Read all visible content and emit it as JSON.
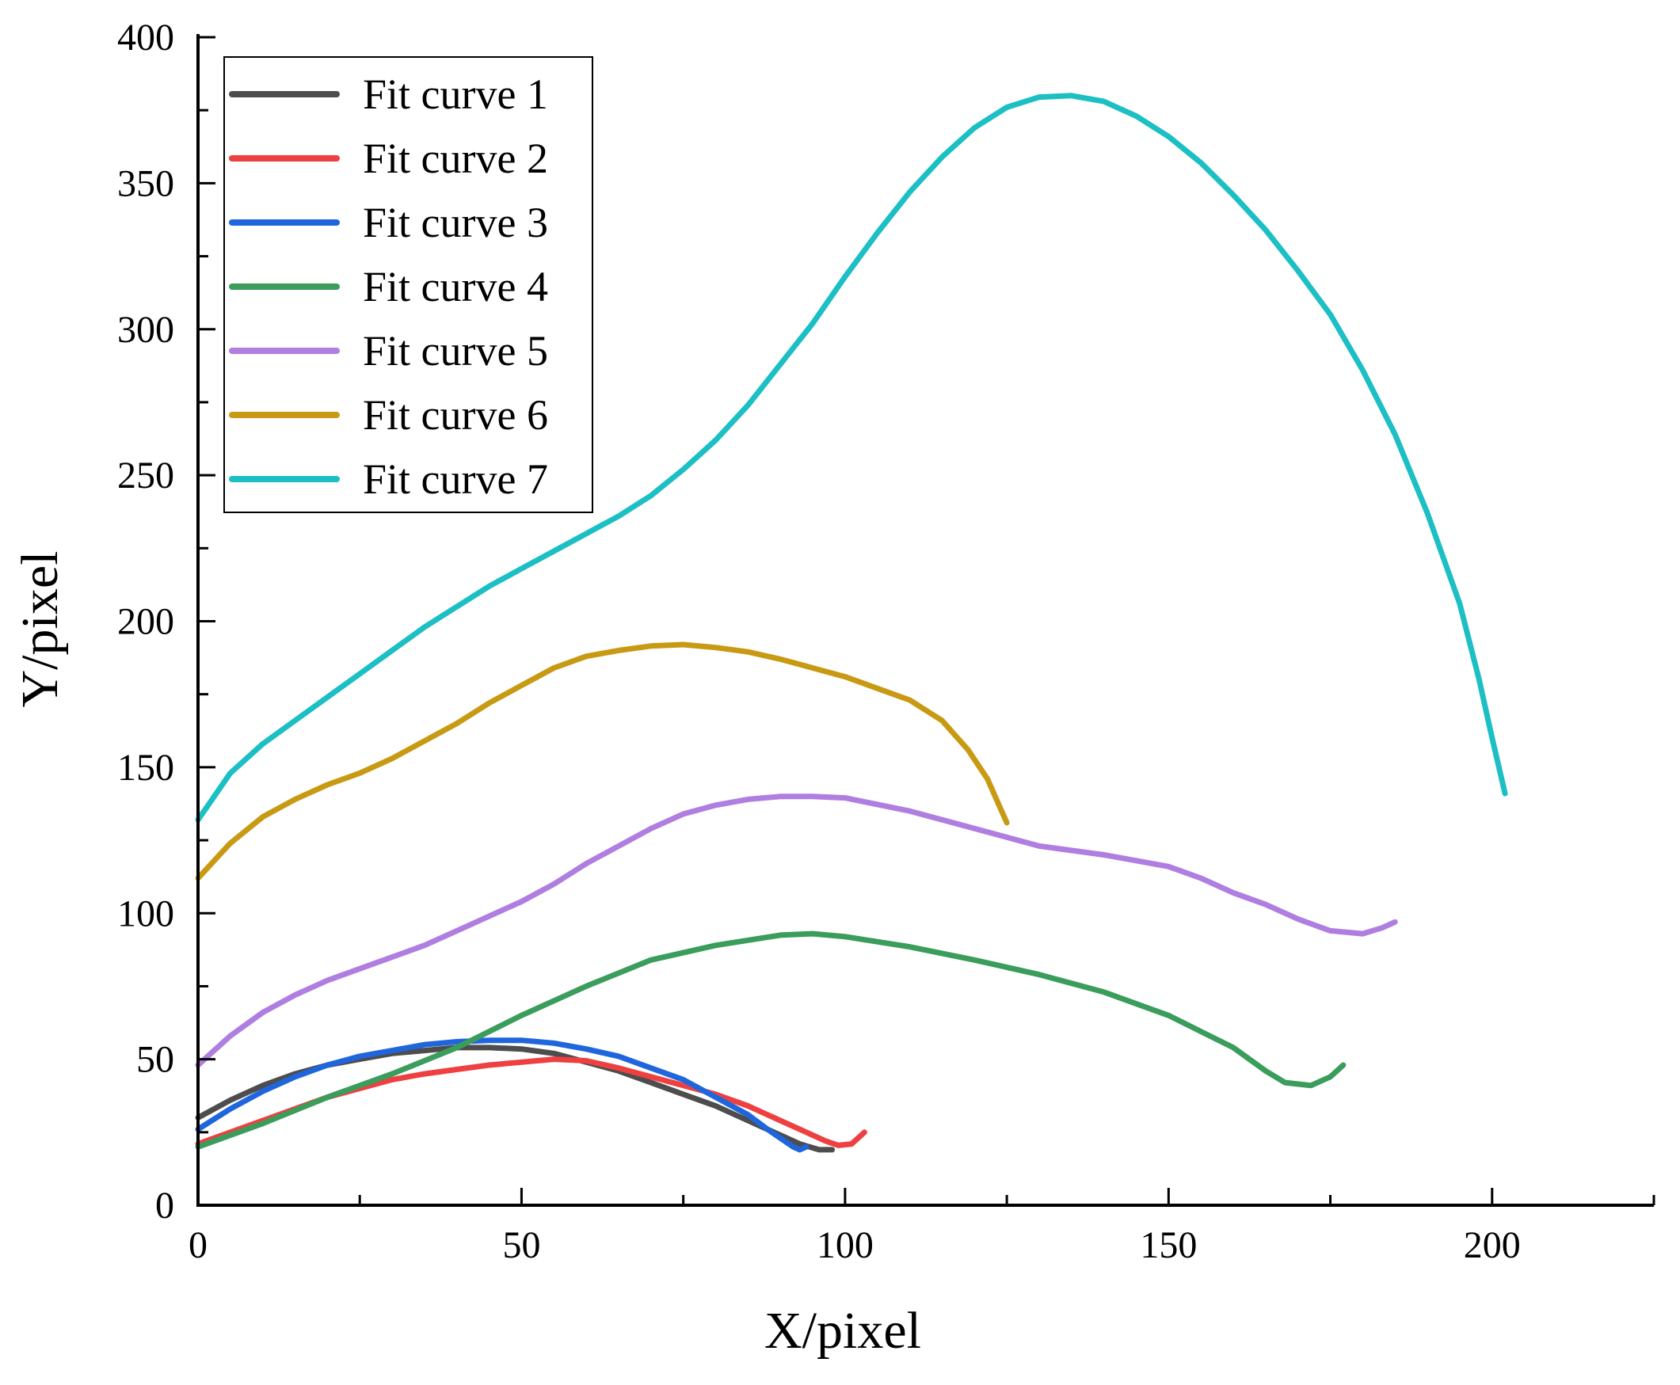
{
  "chart_data": {
    "type": "line",
    "title": "",
    "xlabel": "X/pixel",
    "ylabel": "Y/pixel",
    "xlim": [
      0,
      225
    ],
    "ylim": [
      0,
      400
    ],
    "x_ticks": [
      "0",
      "50",
      "100",
      "150",
      "200"
    ],
    "y_ticks": [
      "0",
      "50",
      "100",
      "150",
      "200",
      "250",
      "300",
      "350",
      "400"
    ],
    "grid": false,
    "legend_position": "top-left",
    "series": [
      {
        "name": "Fit curve 1",
        "color": "#4d4d4d",
        "points": [
          [
            0,
            30
          ],
          [
            5,
            36
          ],
          [
            10,
            41
          ],
          [
            15,
            45
          ],
          [
            20,
            48
          ],
          [
            25,
            50
          ],
          [
            30,
            52
          ],
          [
            35,
            53
          ],
          [
            40,
            54
          ],
          [
            45,
            54
          ],
          [
            50,
            53.5
          ],
          [
            55,
            52
          ],
          [
            60,
            49
          ],
          [
            65,
            46
          ],
          [
            70,
            42
          ],
          [
            75,
            38
          ],
          [
            80,
            34
          ],
          [
            85,
            29
          ],
          [
            90,
            24
          ],
          [
            93,
            21
          ],
          [
            96,
            19
          ],
          [
            98,
            19
          ]
        ]
      },
      {
        "name": "Fit curve 2",
        "color": "#ee4040",
        "points": [
          [
            0,
            21
          ],
          [
            5,
            25
          ],
          [
            10,
            29
          ],
          [
            15,
            33
          ],
          [
            20,
            37
          ],
          [
            25,
            40
          ],
          [
            30,
            43
          ],
          [
            35,
            45
          ],
          [
            40,
            46.5
          ],
          [
            45,
            48
          ],
          [
            50,
            49
          ],
          [
            55,
            50
          ],
          [
            60,
            49.5
          ],
          [
            65,
            47
          ],
          [
            70,
            44
          ],
          [
            75,
            41
          ],
          [
            80,
            38
          ],
          [
            85,
            34
          ],
          [
            90,
            29
          ],
          [
            94,
            25
          ],
          [
            97,
            22
          ],
          [
            99,
            20.5
          ],
          [
            101,
            21
          ],
          [
            103,
            25
          ]
        ]
      },
      {
        "name": "Fit curve 3",
        "color": "#1f66dd",
        "points": [
          [
            0,
            26
          ],
          [
            5,
            33
          ],
          [
            10,
            39
          ],
          [
            15,
            44
          ],
          [
            20,
            48
          ],
          [
            25,
            51
          ],
          [
            30,
            53
          ],
          [
            35,
            55
          ],
          [
            40,
            56
          ],
          [
            45,
            56.5
          ],
          [
            50,
            56.5
          ],
          [
            55,
            55.5
          ],
          [
            60,
            53.5
          ],
          [
            65,
            51
          ],
          [
            70,
            47
          ],
          [
            75,
            43
          ],
          [
            80,
            37
          ],
          [
            85,
            31
          ],
          [
            88,
            26
          ],
          [
            90,
            23
          ],
          [
            92,
            20
          ],
          [
            93,
            19
          ],
          [
            94,
            20
          ]
        ]
      },
      {
        "name": "Fit curve 4",
        "color": "#3a9d5c",
        "points": [
          [
            0,
            20
          ],
          [
            10,
            28
          ],
          [
            20,
            37
          ],
          [
            30,
            45
          ],
          [
            40,
            54
          ],
          [
            50,
            65
          ],
          [
            60,
            75
          ],
          [
            70,
            84
          ],
          [
            80,
            89
          ],
          [
            90,
            92.5
          ],
          [
            95,
            93
          ],
          [
            100,
            92
          ],
          [
            110,
            88.5
          ],
          [
            120,
            84
          ],
          [
            130,
            79
          ],
          [
            140,
            73
          ],
          [
            150,
            65
          ],
          [
            160,
            54
          ],
          [
            165,
            46
          ],
          [
            168,
            42
          ],
          [
            172,
            41
          ],
          [
            175,
            44
          ],
          [
            177,
            48
          ]
        ]
      },
      {
        "name": "Fit curve 5",
        "color": "#b07ee0",
        "points": [
          [
            0,
            48
          ],
          [
            5,
            58
          ],
          [
            10,
            66
          ],
          [
            15,
            72
          ],
          [
            20,
            77
          ],
          [
            25,
            81
          ],
          [
            30,
            85
          ],
          [
            35,
            89
          ],
          [
            40,
            94
          ],
          [
            45,
            99
          ],
          [
            50,
            104
          ],
          [
            55,
            110
          ],
          [
            60,
            117
          ],
          [
            65,
            123
          ],
          [
            70,
            129
          ],
          [
            75,
            134
          ],
          [
            80,
            137
          ],
          [
            85,
            139
          ],
          [
            90,
            140
          ],
          [
            95,
            140
          ],
          [
            100,
            139.5
          ],
          [
            110,
            135
          ],
          [
            120,
            129
          ],
          [
            130,
            123
          ],
          [
            140,
            120
          ],
          [
            150,
            116
          ],
          [
            155,
            112
          ],
          [
            160,
            107
          ],
          [
            165,
            103
          ],
          [
            170,
            98
          ],
          [
            175,
            94
          ],
          [
            180,
            93
          ],
          [
            183,
            95
          ],
          [
            185,
            97
          ]
        ]
      },
      {
        "name": "Fit curve 6",
        "color": "#c89a14",
        "points": [
          [
            0,
            112
          ],
          [
            5,
            124
          ],
          [
            10,
            133
          ],
          [
            15,
            139
          ],
          [
            20,
            144
          ],
          [
            25,
            148
          ],
          [
            30,
            153
          ],
          [
            35,
            159
          ],
          [
            40,
            165
          ],
          [
            45,
            172
          ],
          [
            50,
            178
          ],
          [
            55,
            184
          ],
          [
            60,
            188
          ],
          [
            65,
            190
          ],
          [
            70,
            191.5
          ],
          [
            75,
            192
          ],
          [
            80,
            191
          ],
          [
            85,
            189.5
          ],
          [
            90,
            187
          ],
          [
            95,
            184
          ],
          [
            100,
            181
          ],
          [
            105,
            177
          ],
          [
            110,
            173
          ],
          [
            115,
            166
          ],
          [
            119,
            156
          ],
          [
            122,
            146
          ],
          [
            124,
            136
          ],
          [
            125,
            131
          ]
        ]
      },
      {
        "name": "Fit curve 7",
        "color": "#1bbfc4",
        "points": [
          [
            0,
            132
          ],
          [
            5,
            148
          ],
          [
            10,
            158
          ],
          [
            15,
            166
          ],
          [
            20,
            174
          ],
          [
            25,
            182
          ],
          [
            30,
            190
          ],
          [
            35,
            198
          ],
          [
            40,
            205
          ],
          [
            45,
            212
          ],
          [
            50,
            218
          ],
          [
            55,
            224
          ],
          [
            60,
            230
          ],
          [
            65,
            236
          ],
          [
            70,
            243
          ],
          [
            75,
            252
          ],
          [
            80,
            262
          ],
          [
            85,
            274
          ],
          [
            90,
            288
          ],
          [
            95,
            302
          ],
          [
            100,
            318
          ],
          [
            105,
            333
          ],
          [
            110,
            347
          ],
          [
            115,
            359
          ],
          [
            120,
            369
          ],
          [
            125,
            376
          ],
          [
            130,
            379.5
          ],
          [
            135,
            380
          ],
          [
            140,
            378
          ],
          [
            145,
            373
          ],
          [
            150,
            366
          ],
          [
            155,
            357
          ],
          [
            160,
            346
          ],
          [
            165,
            334
          ],
          [
            170,
            320
          ],
          [
            175,
            305
          ],
          [
            180,
            286
          ],
          [
            185,
            264
          ],
          [
            190,
            237
          ],
          [
            195,
            206
          ],
          [
            198,
            180
          ],
          [
            200,
            160
          ],
          [
            202,
            141
          ]
        ]
      }
    ]
  }
}
